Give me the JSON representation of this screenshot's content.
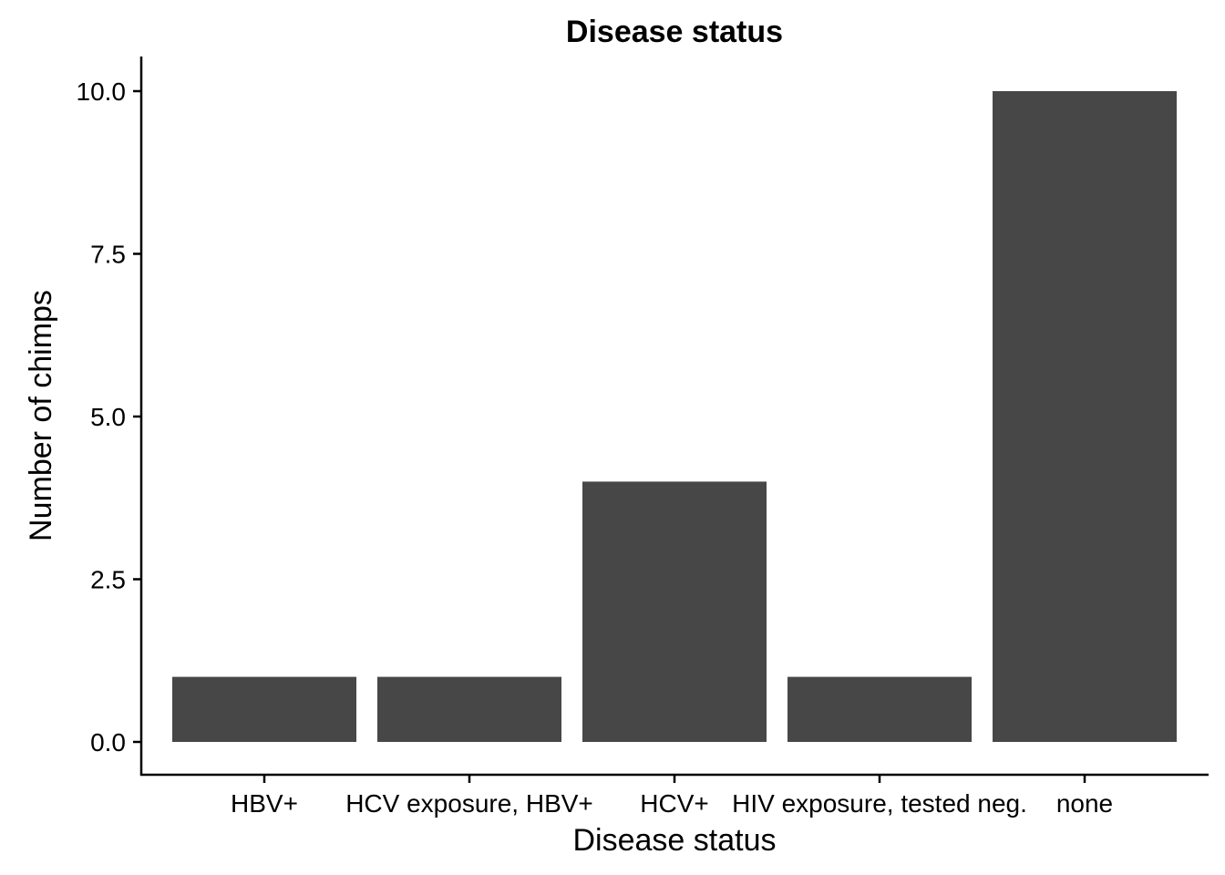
{
  "chart_data": {
    "type": "bar",
    "title": "Disease status",
    "xlabel": "Disease status",
    "ylabel": "Number of chimps",
    "categories": [
      "HBV+",
      "HCV exposure, HBV+",
      "HCV+",
      "HIV exposure, tested neg.",
      "none"
    ],
    "values": [
      1,
      1,
      4,
      1,
      10
    ],
    "ylim": [
      -0.5,
      10.5
    ],
    "yticks": [
      0,
      2.5,
      5,
      7.5,
      10
    ],
    "ytick_labels": [
      "0.0",
      "2.5",
      "5.0",
      "7.5",
      "10.0"
    ],
    "bar_color": "#474747",
    "grid": false,
    "legend": "none"
  }
}
